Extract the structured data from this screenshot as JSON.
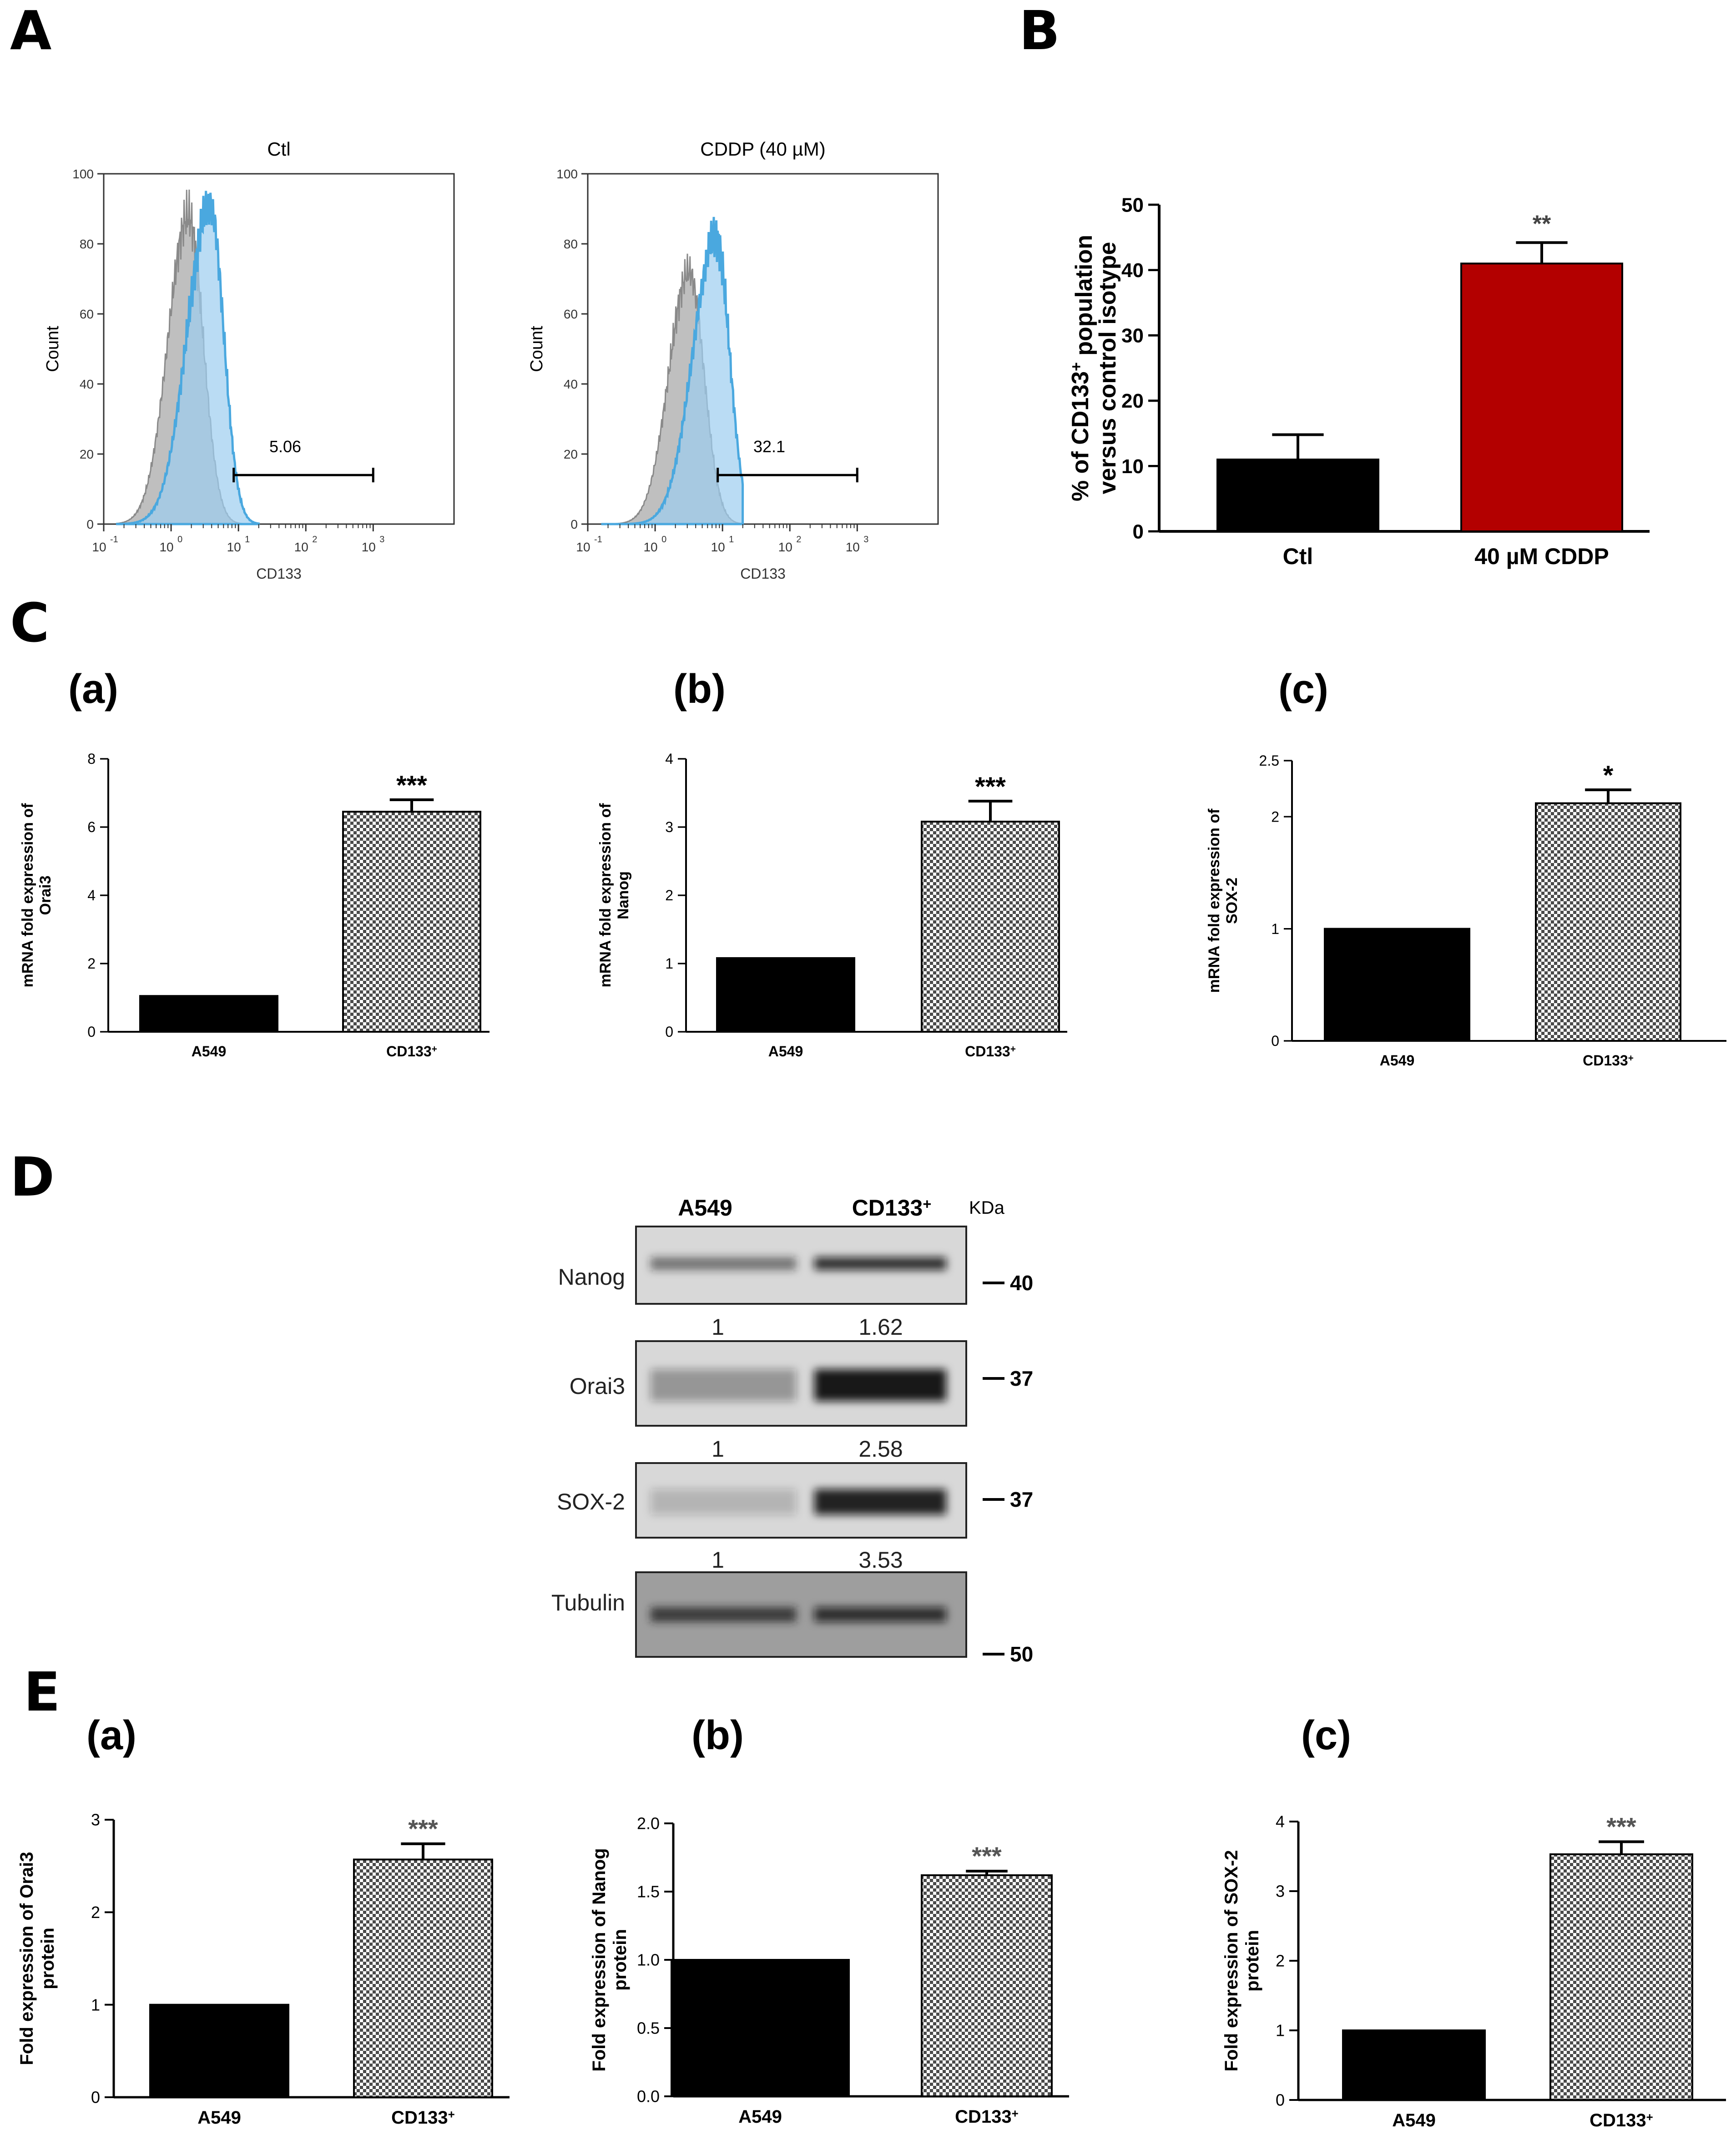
{
  "panel_letters": {
    "A": "A",
    "B": "B",
    "C": "C",
    "D": "D",
    "E": "E"
  },
  "sub_letters": {
    "a": "(a)",
    "b": "(b)",
    "c": "(c)"
  },
  "colors": {
    "isotype": "#a9a9a9",
    "cd133_fill": "#9ccdef",
    "cd133_line": "#4aa8df",
    "bar_black": "#000000",
    "bar_red": "#b30000",
    "hatched": "#555555"
  },
  "chart_data": [
    {
      "id": "A-ctl",
      "type": "histogram",
      "title": "Ctl",
      "xlabel": "CD133",
      "ylabel": "Count",
      "x_scale": "log",
      "x_ticks": [
        "10",
        "10",
        "10",
        "10",
        "10"
      ],
      "x_tick_exps": [
        "-1",
        "0",
        "1",
        "2",
        "3"
      ],
      "y_ticks": [
        "0",
        "20",
        "40",
        "60",
        "80",
        "100"
      ],
      "ylim": [
        0,
        100
      ],
      "gate_label": "5.06",
      "gate_range": [
        8.5,
        1000
      ],
      "series": [
        {
          "role": "isotype",
          "peak_x": 1.8,
          "peak": 88
        },
        {
          "role": "CD133",
          "peak_x": 3.8,
          "peak": 91
        }
      ]
    },
    {
      "id": "A-cddp",
      "type": "histogram",
      "title": "CDDP (40 µM)",
      "xlabel": "CD133",
      "ylabel": "Count",
      "x_scale": "log",
      "x_ticks": [
        "10",
        "10",
        "10",
        "10",
        "10"
      ],
      "x_tick_exps": [
        "-1",
        "0",
        "1",
        "2",
        "3"
      ],
      "y_ticks": [
        "0",
        "20",
        "40",
        "60",
        "80",
        "100"
      ],
      "ylim": [
        0,
        100
      ],
      "gate_label": "32.1",
      "gate_range": [
        8.5,
        1000
      ],
      "series": [
        {
          "role": "isotype",
          "peak_x": 3.2,
          "peak": 72
        },
        {
          "role": "CD133",
          "peak_x": 8.0,
          "peak": 82
        }
      ]
    },
    {
      "id": "B",
      "type": "bar",
      "categories": [
        "Ctl",
        "40 µM CDDP"
      ],
      "values": [
        11,
        41
      ],
      "errors": [
        3.8,
        3.2
      ],
      "ylabel_line1": "% of CD133",
      "ylabel_sup": "+",
      "ylabel_rest": " population",
      "ylabel_line2": "versus control isotype",
      "ylim": [
        0,
        50
      ],
      "y_ticks": [
        "0",
        "10",
        "20",
        "30",
        "40",
        "50"
      ],
      "significance": [
        "",
        "**"
      ]
    },
    {
      "id": "C-a",
      "type": "bar",
      "categories": [
        "A549",
        "CD133"
      ],
      "cat_sup": [
        "",
        "+"
      ],
      "values": [
        1.05,
        6.45
      ],
      "errors": [
        0,
        0.35
      ],
      "ylabel_line1": "mRNA fold expression of",
      "ylabel_line2": "Orai3",
      "ylim": [
        0,
        8
      ],
      "y_ticks": [
        "0",
        "2",
        "4",
        "6",
        "8"
      ],
      "significance": [
        "",
        "***"
      ]
    },
    {
      "id": "C-b",
      "type": "bar",
      "categories": [
        "A549",
        "CD133"
      ],
      "cat_sup": [
        "",
        "+"
      ],
      "values": [
        1.08,
        3.08
      ],
      "errors": [
        0,
        0.3
      ],
      "ylabel_line1": "mRNA fold expression of",
      "ylabel_line2": "Nanog",
      "ylim": [
        0,
        4
      ],
      "y_ticks": [
        "0",
        "1",
        "2",
        "3",
        "4"
      ],
      "significance": [
        "",
        "***"
      ]
    },
    {
      "id": "C-c",
      "type": "bar",
      "categories": [
        "A549",
        "CD133"
      ],
      "cat_sup": [
        "",
        "+"
      ],
      "values": [
        1.0,
        2.12
      ],
      "errors": [
        0,
        0.12
      ],
      "ylabel_line1": "mRNA fold expression of",
      "ylabel_line2": "SOX-2",
      "ylim": [
        0,
        2.5
      ],
      "y_ticks": [
        "0",
        "1",
        "2",
        "2.5"
      ],
      "y_tick_vals": [
        0,
        1,
        2,
        2.5
      ],
      "significance": [
        "",
        "*"
      ]
    },
    {
      "id": "E-a",
      "type": "bar",
      "categories": [
        "A549",
        "CD133"
      ],
      "cat_sup": [
        "",
        "+"
      ],
      "values": [
        1.0,
        2.57
      ],
      "errors": [
        0,
        0.17
      ],
      "ylabel_line1": "Fold expression of Orai3",
      "ylabel_line2": "protein",
      "ylim": [
        0,
        3
      ],
      "y_ticks": [
        "0",
        "1",
        "2",
        "3"
      ],
      "significance": [
        "",
        "***"
      ]
    },
    {
      "id": "E-b",
      "type": "bar",
      "categories": [
        "A549",
        "CD133"
      ],
      "cat_sup": [
        "",
        "+"
      ],
      "values": [
        1.0,
        1.62
      ],
      "errors": [
        0,
        0.03
      ],
      "ylabel_line1": "Fold expression of Nanog",
      "ylabel_line2": "protein",
      "ylim": [
        0,
        2
      ],
      "y_ticks": [
        "0.0",
        "0.5",
        "1.0",
        "1.5",
        "2.0"
      ],
      "significance": [
        "",
        "***"
      ]
    },
    {
      "id": "E-c",
      "type": "bar",
      "categories": [
        "A549",
        "CD133"
      ],
      "cat_sup": [
        "",
        "+"
      ],
      "values": [
        1.0,
        3.53
      ],
      "errors": [
        0,
        0.18
      ],
      "ylabel_line1": "Fold expression of SOX-2",
      "ylabel_line2": "protein",
      "ylim": [
        0,
        4
      ],
      "y_ticks": [
        "0",
        "1",
        "2",
        "3",
        "4"
      ],
      "significance": [
        "",
        "***"
      ]
    }
  ],
  "western_blot": {
    "col_a549": "A549",
    "col_cd133": "CD133",
    "col_cd133_sup": "+",
    "kda_header": "KDa",
    "rows": [
      {
        "label": "Nanog",
        "marker": "40",
        "ratio_a": "1",
        "ratio_b": "1.62",
        "band_a": 0.55,
        "band_b": 0.85
      },
      {
        "label": "Orai3",
        "marker": "37",
        "ratio_a": "1",
        "ratio_b": "2.58",
        "band_a": 0.35,
        "band_b": 0.95
      },
      {
        "label": "SOX-2",
        "marker": "37",
        "ratio_a": "1",
        "ratio_b": "3.53",
        "band_a": 0.2,
        "band_b": 0.9
      },
      {
        "label": "Tubulin",
        "marker": "50",
        "ratio_a": "",
        "ratio_b": "",
        "band_a": 0.8,
        "band_b": 0.8
      }
    ]
  }
}
